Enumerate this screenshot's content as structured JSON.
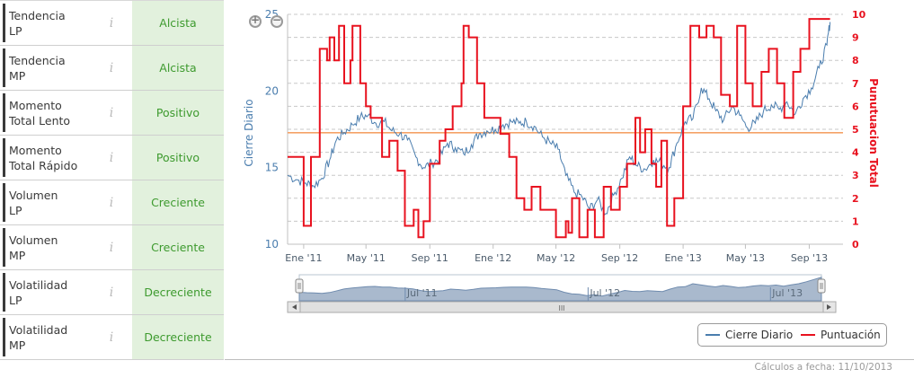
{
  "indicators": [
    {
      "label_line1": "Tendencia",
      "label_line2": "LP",
      "value": "Alcista"
    },
    {
      "label_line1": "Tendencia",
      "label_line2": "MP",
      "value": "Alcista"
    },
    {
      "label_line1": "Momento",
      "label_line2": "Total Lento",
      "value": "Positivo"
    },
    {
      "label_line1": "Momento",
      "label_line2": "Total Rápido",
      "value": "Positivo"
    },
    {
      "label_line1": "Volumen",
      "label_line2": "LP",
      "value": "Creciente"
    },
    {
      "label_line1": "Volumen",
      "label_line2": "MP",
      "value": "Creciente"
    },
    {
      "label_line1": "Volatilidad",
      "label_line2": "LP",
      "value": "Decreciente"
    },
    {
      "label_line1": "Volatilidad",
      "label_line2": "MP",
      "value": "Decreciente"
    }
  ],
  "info_glyph": "i",
  "footer": {
    "date_text": "Cálculos a fecha: 11/10/2013"
  },
  "colors": {
    "price": "#4a7dae",
    "score": "#e8121f",
    "reference": "#f5a267",
    "positive_bg": "#e2f1dd",
    "positive_text": "#3d9a2e"
  },
  "chart_data": {
    "type": "line",
    "title": "",
    "xlabel": "",
    "y_left_label": "Cierre Diario",
    "y_right_label": "Punutuacion Total",
    "y_left_ticks": [
      "10",
      "15",
      "20",
      "25"
    ],
    "y_left_range": [
      10,
      25
    ],
    "y_right_ticks": [
      "0",
      "1",
      "2",
      "3",
      "4",
      "5",
      "6",
      "7",
      "8",
      "9",
      "10"
    ],
    "y_right_range": [
      0,
      10
    ],
    "x_ticks": [
      "Ene '11",
      "May '11",
      "Sep '11",
      "Ene '12",
      "May '12",
      "Sep '12",
      "Ene '13",
      "May '13",
      "Sep '13"
    ],
    "x_range": [
      "2010-12",
      "2013-10"
    ],
    "grid": true,
    "reference_line": {
      "axis": "right",
      "value": 4.85
    },
    "series": [
      {
        "name": "Cierre Diario",
        "axis": "left",
        "x": [
          "2010-12-01",
          "2010-12-20",
          "2011-01-05",
          "2011-01-20",
          "2011-02-05",
          "2011-02-20",
          "2011-03-05",
          "2011-03-20",
          "2011-04-05",
          "2011-04-20",
          "2011-05-05",
          "2011-05-20",
          "2011-06-05",
          "2011-06-20",
          "2011-07-05",
          "2011-07-20",
          "2011-08-05",
          "2011-08-20",
          "2011-09-05",
          "2011-09-20",
          "2011-10-05",
          "2011-10-20",
          "2011-11-05",
          "2011-11-20",
          "2011-12-05",
          "2011-12-20",
          "2012-01-05",
          "2012-01-20",
          "2012-02-05",
          "2012-02-20",
          "2012-03-05",
          "2012-03-20",
          "2012-04-05",
          "2012-04-20",
          "2012-05-05",
          "2012-05-20",
          "2012-06-05",
          "2012-06-20",
          "2012-07-05",
          "2012-07-20",
          "2012-08-05",
          "2012-08-20",
          "2012-09-05",
          "2012-09-20",
          "2012-10-05",
          "2012-10-20",
          "2012-11-05",
          "2012-11-20",
          "2012-12-05",
          "2012-12-20",
          "2013-01-05",
          "2013-01-20",
          "2013-02-05",
          "2013-02-20",
          "2013-03-05",
          "2013-03-20",
          "2013-04-05",
          "2013-04-20",
          "2013-05-05",
          "2013-05-20",
          "2013-06-05",
          "2013-06-20",
          "2013-07-05",
          "2013-07-20",
          "2013-08-05",
          "2013-08-20",
          "2013-09-05",
          "2013-09-20",
          "2013-10-05",
          "2013-10-11"
        ],
        "values": [
          14.5,
          14.2,
          14.0,
          13.8,
          14.3,
          15.5,
          16.8,
          17.3,
          17.8,
          18.3,
          18.4,
          17.9,
          18.0,
          17.4,
          17.2,
          16.8,
          15.7,
          15.0,
          15.3,
          15.6,
          16.6,
          16.3,
          15.9,
          16.5,
          17.2,
          17.4,
          17.5,
          17.8,
          18.0,
          17.9,
          18.0,
          17.7,
          17.0,
          16.6,
          16.2,
          14.5,
          13.4,
          13.1,
          12.3,
          12.9,
          12.0,
          13.2,
          14.3,
          15.7,
          15.1,
          14.9,
          15.5,
          15.3,
          15.0,
          16.6,
          18.0,
          18.2,
          20.2,
          19.5,
          18.7,
          18.1,
          19.0,
          18.4,
          17.6,
          17.9,
          18.7,
          19.1,
          18.8,
          19.3,
          18.5,
          19.5,
          20.2,
          21.5,
          23.0,
          24.5
        ]
      },
      {
        "name": "Puntuación",
        "axis": "right",
        "x": [
          "2010-12-01",
          "2011-01-01",
          "2011-01-15",
          "2011-02-01",
          "2011-02-15",
          "2011-02-20",
          "2011-03-01",
          "2011-03-10",
          "2011-03-20",
          "2011-04-01",
          "2011-04-05",
          "2011-04-20",
          "2011-05-01",
          "2011-05-10",
          "2011-06-01",
          "2011-06-15",
          "2011-07-01",
          "2011-07-15",
          "2011-08-01",
          "2011-08-10",
          "2011-08-15",
          "2011-08-20",
          "2011-09-01",
          "2011-09-20",
          "2011-10-01",
          "2011-10-15",
          "2011-11-01",
          "2011-11-05",
          "2011-11-15",
          "2011-12-01",
          "2011-12-15",
          "2012-01-15",
          "2012-02-01",
          "2012-02-15",
          "2012-03-01",
          "2012-03-15",
          "2012-04-01",
          "2012-05-01",
          "2012-05-20",
          "2012-05-25",
          "2012-06-01",
          "2012-06-15",
          "2012-07-01",
          "2012-07-15",
          "2012-08-01",
          "2012-08-15",
          "2012-09-01",
          "2012-09-15",
          "2012-10-01",
          "2012-10-10",
          "2012-10-20",
          "2012-11-01",
          "2012-11-10",
          "2012-11-20",
          "2012-12-01",
          "2012-12-15",
          "2013-01-01",
          "2013-01-15",
          "2013-02-01",
          "2013-02-15",
          "2013-03-01",
          "2013-03-15",
          "2013-04-01",
          "2013-04-15",
          "2013-05-01",
          "2013-05-15",
          "2013-06-01",
          "2013-06-15",
          "2013-07-01",
          "2013-07-15",
          "2013-08-01",
          "2013-08-15",
          "2013-09-01",
          "2013-10-11"
        ],
        "values": [
          3.8,
          0.8,
          3.8,
          8.5,
          8.0,
          9.0,
          8.0,
          9.5,
          7.0,
          8.0,
          9.5,
          7.0,
          6.0,
          5.5,
          3.8,
          4.5,
          3.2,
          0.8,
          1.5,
          0.3,
          0.3,
          1.0,
          3.5,
          4.5,
          5.0,
          6.0,
          7.0,
          9.5,
          9.0,
          7.0,
          5.5,
          4.8,
          3.8,
          2.0,
          1.5,
          2.5,
          1.5,
          0.3,
          1.0,
          0.5,
          2.0,
          0.3,
          1.5,
          0.3,
          2.5,
          1.5,
          2.5,
          3.5,
          5.5,
          4.0,
          5.0,
          3.5,
          2.5,
          4.5,
          0.8,
          2.0,
          6.0,
          9.5,
          9.0,
          9.5,
          9.0,
          6.5,
          6.0,
          9.5,
          7.0,
          6.0,
          7.5,
          8.5,
          7.0,
          5.5,
          7.5,
          8.5,
          9.8,
          9.8
        ]
      }
    ],
    "navigator": {
      "labels": [
        "Jul '11",
        "Jul '12",
        "Jul '13"
      ],
      "scroll_glyph": "III"
    }
  },
  "legend": {
    "price_label": "Cierre Diario",
    "score_label": "Puntuación"
  },
  "zoom": {
    "in_label": "+",
    "out_label": "−"
  }
}
